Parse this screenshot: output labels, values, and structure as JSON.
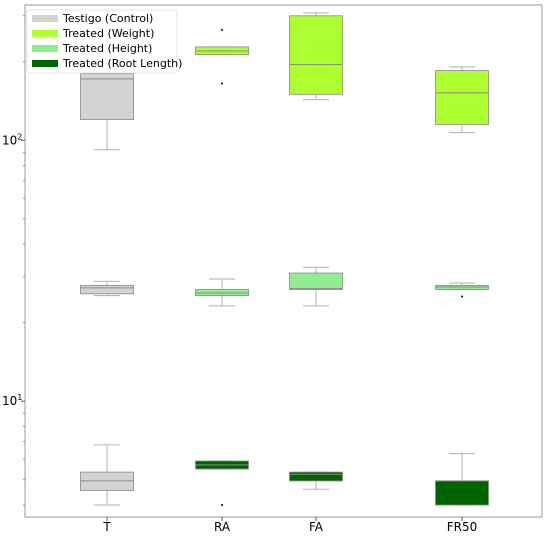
{
  "chart_data": {
    "type": "box",
    "yscale": "log",
    "ylim": [
      3.6,
      330
    ],
    "categories": [
      "T",
      "RA",
      "FA",
      "FR50"
    ],
    "y_ticks": [
      {
        "value": 10,
        "label": "10",
        "sup": "1"
      },
      {
        "value": 100,
        "label": "10",
        "sup": "2"
      }
    ],
    "legend": {
      "position": "top-left"
    },
    "series": [
      {
        "name": "Testigo (Control)",
        "color": "#d3d3d3",
        "boxes": {
          "T": {
            "top": {
              "whislo": 92,
              "q1": 120,
              "med": 172,
              "q3": 180,
              "whishi": 203,
              "fliers": []
            },
            "mid": {
              "whislo": 25.4,
              "q1": 25.8,
              "med": 27.2,
              "q3": 27.8,
              "whishi": 28.8,
              "fliers": []
            },
            "bot": {
              "whislo": 4.0,
              "q1": 4.55,
              "med": 4.95,
              "q3": 5.35,
              "whishi": 6.8,
              "fliers": []
            }
          }
        }
      },
      {
        "name": "Treated (Weight)",
        "color": "#adff2f",
        "boxes": {
          "RA": {
            "whislo": 213,
            "q1": 213,
            "med": 220,
            "q3": 228,
            "whishi": 228,
            "fliers": [
              165,
              265
            ]
          },
          "FA": {
            "whislo": 143,
            "q1": 150,
            "med": 195,
            "q3": 300,
            "whishi": 308,
            "fliers": []
          },
          "FR50": {
            "whislo": 107,
            "q1": 115,
            "med": 152,
            "q3": 185,
            "whishi": 191,
            "fliers": []
          }
        }
      },
      {
        "name": "Treated (Height)",
        "color": "#90ee90",
        "boxes": {
          "RA": {
            "whislo": 23.2,
            "q1": 25.4,
            "med": 26.0,
            "q3": 26.8,
            "whishi": 29.4,
            "fliers": []
          },
          "FA": {
            "whislo": 23.2,
            "q1": 26.8,
            "med": 27.0,
            "q3": 31.0,
            "whishi": 32.6,
            "fliers": []
          },
          "FR50": {
            "whislo": 26.8,
            "q1": 26.8,
            "med": 27.4,
            "q3": 27.8,
            "whishi": 28.4,
            "fliers": [
              25.2
            ]
          }
        }
      },
      {
        "name": "Treated (Root Length)",
        "color": "#006400",
        "boxes": {
          "RA": {
            "whislo": 5.5,
            "q1": 5.5,
            "med": 5.7,
            "q3": 5.9,
            "whishi": 5.9,
            "fliers": [
              4.0
            ]
          },
          "FA": {
            "whislo": 4.6,
            "q1": 4.95,
            "med": 5.25,
            "q3": 5.35,
            "whishi": 5.35,
            "fliers": []
          },
          "FR50": {
            "whislo": 4.0,
            "q1": 4.0,
            "med": 4.95,
            "q3": 4.95,
            "whishi": 6.3,
            "fliers": []
          }
        }
      }
    ]
  }
}
